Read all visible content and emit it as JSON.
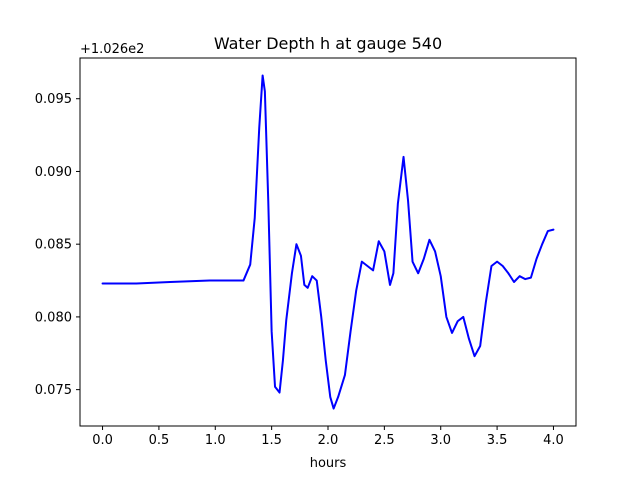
{
  "chart_data": {
    "type": "line",
    "title": "Water Depth h at gauge 540",
    "xlabel": "hours",
    "ylabel": "",
    "offset_label": "+1.026e2",
    "xlim": [
      -0.2,
      4.2
    ],
    "ylim": [
      0.0725,
      0.0978
    ],
    "xticks": [
      0.0,
      0.5,
      1.0,
      1.5,
      2.0,
      2.5,
      3.0,
      3.5,
      4.0
    ],
    "xtick_labels": [
      "0.0",
      "0.5",
      "1.0",
      "1.5",
      "2.0",
      "2.5",
      "3.0",
      "3.5",
      "4.0"
    ],
    "yticks": [
      0.075,
      0.08,
      0.085,
      0.09,
      0.095
    ],
    "ytick_labels": [
      "0.075",
      "0.080",
      "0.085",
      "0.090",
      "0.095"
    ],
    "grid": false,
    "series": [
      {
        "color": "#0000ff",
        "x": [
          0.0,
          0.3,
          0.6,
          0.95,
          1.05,
          1.25,
          1.31,
          1.35,
          1.39,
          1.42,
          1.44,
          1.47,
          1.5,
          1.53,
          1.57,
          1.6,
          1.63,
          1.68,
          1.72,
          1.76,
          1.79,
          1.82,
          1.86,
          1.9,
          1.94,
          1.98,
          2.02,
          2.05,
          2.09,
          2.15,
          2.2,
          2.25,
          2.3,
          2.35,
          2.4,
          2.45,
          2.5,
          2.55,
          2.58,
          2.62,
          2.67,
          2.71,
          2.75,
          2.8,
          2.85,
          2.9,
          2.95,
          3.0,
          3.05,
          3.1,
          3.15,
          3.2,
          3.25,
          3.3,
          3.35,
          3.4,
          3.45,
          3.5,
          3.55,
          3.6,
          3.65,
          3.7,
          3.75,
          3.8,
          3.85,
          3.9,
          3.95,
          4.0
        ],
        "y": [
          0.0823,
          0.0823,
          0.0824,
          0.0825,
          0.0825,
          0.0825,
          0.0836,
          0.0868,
          0.093,
          0.0966,
          0.0955,
          0.088,
          0.079,
          0.0752,
          0.0748,
          0.077,
          0.0798,
          0.083,
          0.085,
          0.0842,
          0.0822,
          0.082,
          0.0828,
          0.0825,
          0.08,
          0.077,
          0.0745,
          0.0737,
          0.0745,
          0.076,
          0.079,
          0.0818,
          0.0838,
          0.0835,
          0.0832,
          0.0852,
          0.0845,
          0.0822,
          0.083,
          0.0878,
          0.091,
          0.088,
          0.0838,
          0.083,
          0.084,
          0.0853,
          0.0845,
          0.0828,
          0.08,
          0.0789,
          0.0797,
          0.08,
          0.0785,
          0.0773,
          0.078,
          0.081,
          0.0835,
          0.0838,
          0.0835,
          0.083,
          0.0824,
          0.0828,
          0.0826,
          0.0827,
          0.084,
          0.085,
          0.0859,
          0.086
        ]
      }
    ]
  }
}
